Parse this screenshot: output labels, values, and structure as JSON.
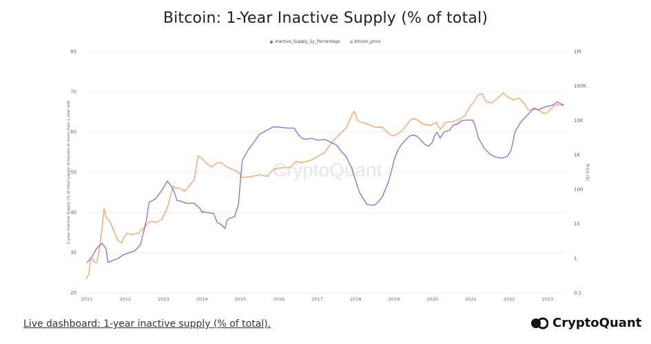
{
  "page": {
    "title": "Bitcoin: 1-Year Inactive Supply (% of total)"
  },
  "footer": {
    "link_text": "Live dashboard: 1-year inactive supply (% of total).",
    "brand": "CryptoQuant"
  },
  "watermark": "CryptoQuant",
  "colors": {
    "supply": "#7a5ee6",
    "price": "#f59a52",
    "grid": "#eeeeee",
    "axis_text": "#666666"
  },
  "chart_data": {
    "type": "line",
    "title": "Bitcoin: 1-Year Inactive Supply (% of total)",
    "legend": [
      "Inactive_Supply_1y_Percentage",
      "bitcoin_price"
    ],
    "legend_position": "top-center",
    "grid": true,
    "y_left": {
      "label": "1-year inactive Supply (% of total supply of bitcoin at more than 1 year old)",
      "range": [
        20,
        80
      ],
      "ticks": [
        "80",
        "70",
        "60",
        "50",
        "40",
        "30",
        "20"
      ]
    },
    "y_right": {
      "label": "Price ($)",
      "scale": "log",
      "range": [
        0.1,
        1000000
      ],
      "ticks": [
        {
          "v": 1000000,
          "label": "1M"
        },
        {
          "v": 100000,
          "label": "100K"
        },
        {
          "v": 10000,
          "label": "10K"
        },
        {
          "v": 1000,
          "label": "1K"
        },
        {
          "v": 100,
          "label": "100"
        },
        {
          "v": 10,
          "label": "10"
        },
        {
          "v": 1,
          "label": "1"
        },
        {
          "v": 0.1,
          "label": "0.1"
        }
      ]
    },
    "x": {
      "range": [
        2011,
        2023.45
      ],
      "ticks": [
        "2011",
        "2012",
        "2013",
        "2014",
        "2015",
        "2016",
        "2017",
        "2018",
        "2019",
        "2020",
        "2021",
        "2022",
        "2023"
      ]
    },
    "series": [
      {
        "name": "Inactive_Supply_1y_Percentage",
        "axis": "left",
        "points": [
          [
            2011.0,
            27.5
          ],
          [
            2011.15,
            29.2
          ],
          [
            2011.25,
            31.0
          ],
          [
            2011.4,
            32.4
          ],
          [
            2011.5,
            31.0
          ],
          [
            2011.55,
            27.6
          ],
          [
            2011.65,
            28.0
          ],
          [
            2011.8,
            28.5
          ],
          [
            2011.95,
            29.5
          ],
          [
            2012.1,
            30.0
          ],
          [
            2012.25,
            30.5
          ],
          [
            2012.4,
            32.0
          ],
          [
            2012.55,
            38.0
          ],
          [
            2012.62,
            42.5
          ],
          [
            2012.8,
            43.5
          ],
          [
            2012.95,
            45.5
          ],
          [
            2013.1,
            47.8
          ],
          [
            2013.2,
            46.5
          ],
          [
            2013.28,
            45.0
          ],
          [
            2013.35,
            43.0
          ],
          [
            2013.45,
            42.8
          ],
          [
            2013.6,
            42.3
          ],
          [
            2013.8,
            42.3
          ],
          [
            2013.95,
            41.0
          ],
          [
            2014.0,
            40.0
          ],
          [
            2014.05,
            40.3
          ],
          [
            2014.1,
            40.0
          ],
          [
            2014.3,
            39.8
          ],
          [
            2014.4,
            37.5
          ],
          [
            2014.5,
            37.0
          ],
          [
            2014.6,
            36.0
          ],
          [
            2014.65,
            38.0
          ],
          [
            2014.7,
            38.5
          ],
          [
            2014.85,
            39.0
          ],
          [
            2014.95,
            42.0
          ],
          [
            2015.0,
            48.0
          ],
          [
            2015.05,
            53.0
          ],
          [
            2015.2,
            55.5
          ],
          [
            2015.35,
            57.5
          ],
          [
            2015.5,
            59.5
          ],
          [
            2015.7,
            60.5
          ],
          [
            2015.85,
            61.3
          ],
          [
            2016.0,
            61.3
          ],
          [
            2016.2,
            61.0
          ],
          [
            2016.4,
            61.0
          ],
          [
            2016.5,
            59.5
          ],
          [
            2016.6,
            58.5
          ],
          [
            2016.7,
            58.2
          ],
          [
            2016.85,
            58.5
          ],
          [
            2017.0,
            58.0
          ],
          [
            2017.2,
            58.2
          ],
          [
            2017.35,
            57.5
          ],
          [
            2017.5,
            56.8
          ],
          [
            2017.6,
            55.5
          ],
          [
            2017.75,
            54.0
          ],
          [
            2017.9,
            51.0
          ],
          [
            2018.0,
            48.0
          ],
          [
            2018.1,
            45.0
          ],
          [
            2018.2,
            43.5
          ],
          [
            2018.3,
            42.0
          ],
          [
            2018.45,
            41.8
          ],
          [
            2018.55,
            42.2
          ],
          [
            2018.7,
            44.0
          ],
          [
            2018.85,
            47.5
          ],
          [
            2018.95,
            51.0
          ],
          [
            2019.0,
            53.0
          ],
          [
            2019.1,
            55.5
          ],
          [
            2019.2,
            57.0
          ],
          [
            2019.3,
            58.0
          ],
          [
            2019.4,
            59.0
          ],
          [
            2019.5,
            59.3
          ],
          [
            2019.6,
            59.0
          ],
          [
            2019.7,
            58.0
          ],
          [
            2019.8,
            57.0
          ],
          [
            2019.9,
            56.5
          ],
          [
            2019.95,
            57.0
          ],
          [
            2020.0,
            57.5
          ],
          [
            2020.05,
            59.0
          ],
          [
            2020.12,
            60.0
          ],
          [
            2020.2,
            58.5
          ],
          [
            2020.3,
            60.0
          ],
          [
            2020.45,
            60.5
          ],
          [
            2020.55,
            61.8
          ],
          [
            2020.65,
            62.0
          ],
          [
            2020.75,
            62.8
          ],
          [
            2020.85,
            63.0
          ],
          [
            2020.95,
            63.0
          ],
          [
            2021.05,
            63.0
          ],
          [
            2021.1,
            62.0
          ],
          [
            2021.2,
            58.5
          ],
          [
            2021.35,
            56.0
          ],
          [
            2021.5,
            54.5
          ],
          [
            2021.65,
            53.8
          ],
          [
            2021.8,
            53.5
          ],
          [
            2021.95,
            54.0
          ],
          [
            2022.05,
            55.5
          ],
          [
            2022.15,
            60.0
          ],
          [
            2022.3,
            62.5
          ],
          [
            2022.45,
            64.0
          ],
          [
            2022.55,
            65.0
          ],
          [
            2022.65,
            66.0
          ],
          [
            2022.75,
            65.5
          ],
          [
            2022.85,
            66.0
          ],
          [
            2022.95,
            66.3
          ],
          [
            2023.05,
            66.5
          ],
          [
            2023.15,
            66.8
          ],
          [
            2023.25,
            67.5
          ],
          [
            2023.35,
            67.0
          ],
          [
            2023.42,
            66.8
          ]
        ]
      },
      {
        "name": "bitcoin_price",
        "axis": "right",
        "points": [
          [
            2010.98,
            0.25
          ],
          [
            2011.05,
            0.35
          ],
          [
            2011.1,
            0.9
          ],
          [
            2011.15,
            1.0
          ],
          [
            2011.2,
            0.8
          ],
          [
            2011.25,
            0.75
          ],
          [
            2011.3,
            1.2
          ],
          [
            2011.35,
            3.0
          ],
          [
            2011.4,
            8.0
          ],
          [
            2011.45,
            28.0
          ],
          [
            2011.5,
            16.0
          ],
          [
            2011.55,
            14.0
          ],
          [
            2011.6,
            12.0
          ],
          [
            2011.7,
            6.5
          ],
          [
            2011.8,
            3.5
          ],
          [
            2011.9,
            2.8
          ],
          [
            2011.95,
            3.8
          ],
          [
            2012.05,
            5.5
          ],
          [
            2012.15,
            5.0
          ],
          [
            2012.25,
            5.2
          ],
          [
            2012.35,
            5.5
          ],
          [
            2012.5,
            8.0
          ],
          [
            2012.6,
            11.0
          ],
          [
            2012.7,
            12.0
          ],
          [
            2012.8,
            11.0
          ],
          [
            2012.95,
            13.5
          ],
          [
            2013.1,
            30.0
          ],
          [
            2013.25,
            130.0
          ],
          [
            2013.3,
            110.0
          ],
          [
            2013.4,
            110.0
          ],
          [
            2013.55,
            90.0
          ],
          [
            2013.65,
            120.0
          ],
          [
            2013.8,
            200.0
          ],
          [
            2013.9,
            950.0
          ],
          [
            2014.0,
            800.0
          ],
          [
            2014.1,
            600.0
          ],
          [
            2014.25,
            450.0
          ],
          [
            2014.4,
            600.0
          ],
          [
            2014.5,
            600.0
          ],
          [
            2014.65,
            450.0
          ],
          [
            2014.8,
            380.0
          ],
          [
            2014.95,
            320.0
          ],
          [
            2015.05,
            220.0
          ],
          [
            2015.3,
            240.0
          ],
          [
            2015.5,
            270.0
          ],
          [
            2015.7,
            240.0
          ],
          [
            2015.85,
            380.0
          ],
          [
            2016.0,
            420.0
          ],
          [
            2016.3,
            440.0
          ],
          [
            2016.45,
            650.0
          ],
          [
            2016.6,
            600.0
          ],
          [
            2016.85,
            720.0
          ],
          [
            2017.0,
            900.0
          ],
          [
            2017.2,
            1200.0
          ],
          [
            2017.4,
            2500.0
          ],
          [
            2017.6,
            4200.0
          ],
          [
            2017.75,
            6000.0
          ],
          [
            2017.9,
            14000.0
          ],
          [
            2017.96,
            19000.0
          ],
          [
            2018.05,
            10000.0
          ],
          [
            2018.15,
            9000.0
          ],
          [
            2018.3,
            8000.0
          ],
          [
            2018.5,
            6500.0
          ],
          [
            2018.7,
            6500.0
          ],
          [
            2018.88,
            4000.0
          ],
          [
            2019.0,
            3600.0
          ],
          [
            2019.2,
            5000.0
          ],
          [
            2019.45,
            11000.0
          ],
          [
            2019.55,
            11500.0
          ],
          [
            2019.75,
            8000.0
          ],
          [
            2019.95,
            7200.0
          ],
          [
            2020.1,
            9000.0
          ],
          [
            2020.2,
            5500.0
          ],
          [
            2020.35,
            9000.0
          ],
          [
            2020.55,
            9500.0
          ],
          [
            2020.7,
            11000.0
          ],
          [
            2020.85,
            14000.0
          ],
          [
            2020.95,
            23000.0
          ],
          [
            2021.08,
            35000.0
          ],
          [
            2021.2,
            58000.0
          ],
          [
            2021.3,
            60000.0
          ],
          [
            2021.4,
            35000.0
          ],
          [
            2021.55,
            33000.0
          ],
          [
            2021.7,
            45000.0
          ],
          [
            2021.85,
            64000.0
          ],
          [
            2021.98,
            47000.0
          ],
          [
            2022.1,
            40000.0
          ],
          [
            2022.25,
            45000.0
          ],
          [
            2022.4,
            30000.0
          ],
          [
            2022.5,
            20000.0
          ],
          [
            2022.65,
            22000.0
          ],
          [
            2022.8,
            19500.0
          ],
          [
            2022.88,
            16500.0
          ],
          [
            2022.98,
            16500.0
          ],
          [
            2023.1,
            23000.0
          ],
          [
            2023.2,
            28000.0
          ],
          [
            2023.3,
            29000.0
          ],
          [
            2023.42,
            27000.0
          ]
        ]
      }
    ]
  }
}
